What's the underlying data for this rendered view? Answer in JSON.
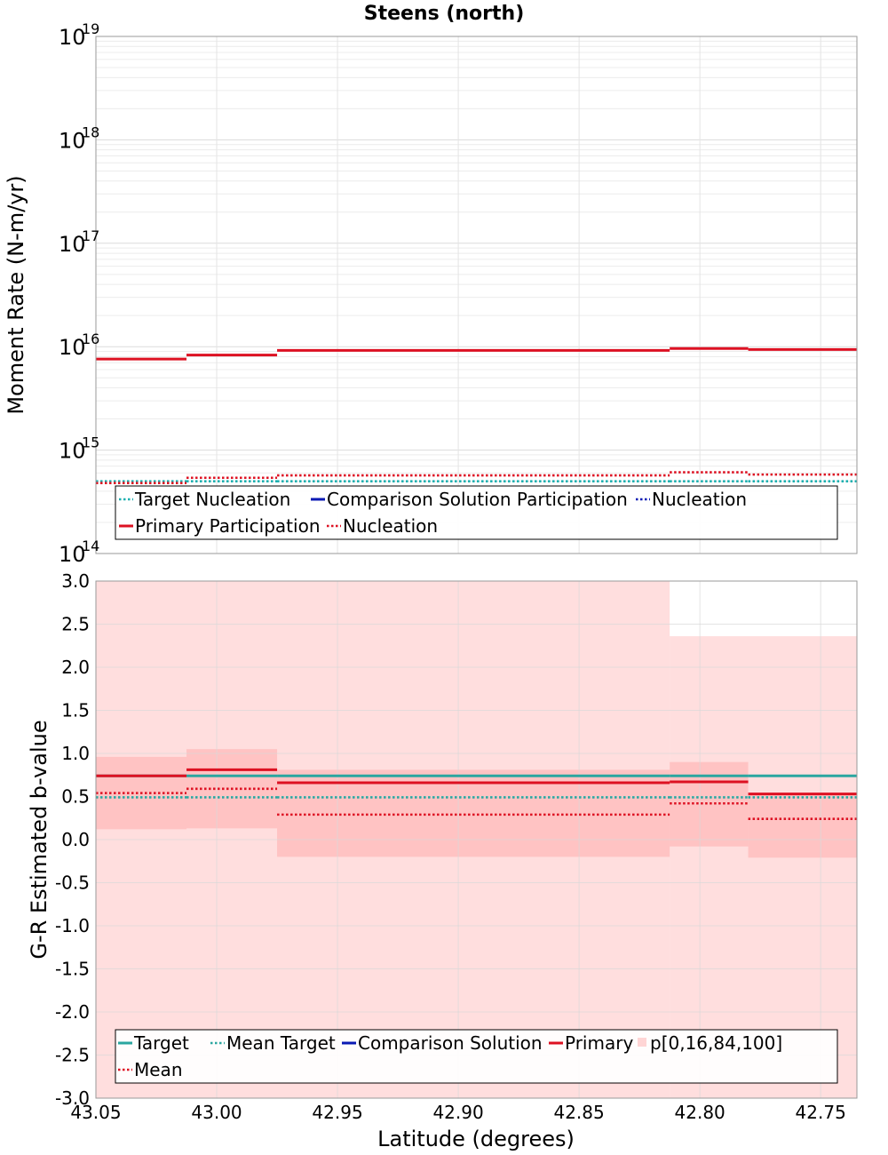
{
  "chart_data": [
    {
      "type": "line",
      "title": "Steens (north)",
      "xlabel": "",
      "ylabel": "Moment Rate (N-m/yr)",
      "yscale": "log",
      "ylim": [
        100000000000000.0,
        1e+19
      ],
      "xlim": [
        43.05,
        42.735
      ],
      "x_reversed": true,
      "grid": true,
      "legend_position": "lower-center",
      "bin_edges": [
        43.05,
        43.0125,
        42.975,
        42.8125,
        42.78,
        42.735
      ],
      "series": [
        {
          "name": "Target Nucleation",
          "style": "dotted",
          "color": "#1aafaf",
          "values": [
            500000000000000.0,
            500000000000000.0,
            500000000000000.0,
            500000000000000.0,
            500000000000000.0
          ]
        },
        {
          "name": "Comparison Solution Participation",
          "style": "solid",
          "color": "#0a1ab4",
          "values": [
            null,
            null,
            null,
            null,
            null
          ]
        },
        {
          "name": "Nucleation",
          "style": "dotted",
          "color": "#0a1ab4",
          "values": [
            null,
            null,
            null,
            null,
            null
          ]
        },
        {
          "name": "Primary Participation",
          "style": "solid",
          "color": "#dd1122",
          "values": [
            7600000000000000.0,
            8300000000000000.0,
            9200000000000000.0,
            9600000000000000.0,
            9400000000000000.0
          ]
        },
        {
          "name": "Nucleation",
          "style": "dotted",
          "color": "#dd1122",
          "values": [
            480000000000000.0,
            540000000000000.0,
            570000000000000.0,
            610000000000000.0,
            580000000000000.0
          ]
        }
      ]
    },
    {
      "type": "line",
      "title": "",
      "xlabel": "Latitude (degrees)",
      "ylabel": "G-R Estimated b-value",
      "ylim": [
        -3.0,
        3.0
      ],
      "xlim": [
        43.05,
        42.735
      ],
      "x_reversed": true,
      "grid": true,
      "legend_position": "lower-center",
      "bin_edges": [
        43.05,
        43.0125,
        42.975,
        42.8125,
        42.78,
        42.735
      ],
      "series": [
        {
          "name": "Target",
          "style": "solid",
          "color": "#2aa6a0",
          "values": [
            0.74,
            0.74,
            0.74,
            0.74,
            0.74
          ]
        },
        {
          "name": "Mean Target",
          "style": "dotted",
          "color": "#2aa6a0",
          "values": [
            0.49,
            0.49,
            0.49,
            0.49,
            0.49
          ]
        },
        {
          "name": "Comparison Solution",
          "style": "solid",
          "color": "#0a1ab4",
          "values": [
            null,
            null,
            null,
            null,
            null
          ]
        },
        {
          "name": "Primary",
          "style": "solid",
          "color": "#dd1122",
          "values": [
            0.74,
            0.81,
            0.66,
            0.67,
            0.53
          ]
        },
        {
          "name": "Mean",
          "style": "dotted",
          "color": "#dd1122",
          "values": [
            0.54,
            0.59,
            0.29,
            0.42,
            0.24
          ]
        }
      ],
      "bands": {
        "name": "p[0,16,84,100]",
        "color": "#ff9999",
        "p0": [
          -3.0,
          -3.0,
          -3.0,
          -3.0,
          -3.0
        ],
        "p16": [
          0.12,
          0.13,
          -0.2,
          -0.08,
          -0.21
        ],
        "p84": [
          0.96,
          1.05,
          0.81,
          0.9,
          0.52
        ],
        "p100": [
          3.0,
          3.0,
          3.0,
          2.36,
          2.36
        ]
      }
    }
  ],
  "top_ticks": {
    "bases": [
      "10",
      "10",
      "10",
      "10",
      "10",
      "10"
    ],
    "exponents": [
      "19",
      "18",
      "17",
      "16",
      "15",
      "14"
    ]
  },
  "bottom_ticks": [
    "3.0",
    "2.5",
    "2.0",
    "1.5",
    "1.0",
    "0.5",
    "0.0",
    "-0.5",
    "-1.0",
    "-1.5",
    "-2.0",
    "-2.5",
    "-3.0"
  ],
  "x_ticks": [
    "43.05",
    "43.00",
    "42.95",
    "42.90",
    "42.85",
    "42.80",
    "42.75"
  ],
  "top_legend": {
    "row1": [
      "Target Nucleation",
      "Comparison Solution Participation",
      "Nucleation"
    ],
    "row2": [
      "Primary Participation",
      "Nucleation"
    ]
  },
  "bottom_legend": {
    "row1": [
      "Target",
      "Mean Target",
      "Comparison Solution",
      "Primary",
      "p[0,16,84,100]"
    ],
    "row2": [
      "Mean"
    ]
  }
}
